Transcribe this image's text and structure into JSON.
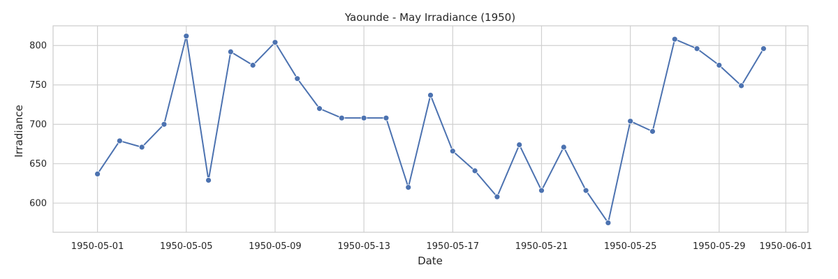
{
  "chart_data": {
    "type": "line",
    "title": "Yaounde - May Irradiance (1950)",
    "xlabel": "Date",
    "ylabel": "Irradiance",
    "x_ticks": [
      "1950-05-01",
      "1950-05-05",
      "1950-05-09",
      "1950-05-13",
      "1950-05-17",
      "1950-05-21",
      "1950-05-25",
      "1950-05-29",
      "1950-06-01"
    ],
    "y_ticks": [
      600,
      650,
      700,
      750,
      800
    ],
    "xlim": [
      "1950-04-29",
      "1950-06-02"
    ],
    "ylim": [
      563,
      825
    ],
    "grid": true,
    "markers": true,
    "line_color": "#4c72b0",
    "series": [
      {
        "x": [
          "1950-05-01",
          "1950-05-02",
          "1950-05-03",
          "1950-05-04",
          "1950-05-05",
          "1950-05-06",
          "1950-05-07",
          "1950-05-08",
          "1950-05-09",
          "1950-05-10",
          "1950-05-11",
          "1950-05-12",
          "1950-05-13",
          "1950-05-14",
          "1950-05-15",
          "1950-05-16",
          "1950-05-17",
          "1950-05-18",
          "1950-05-19",
          "1950-05-20",
          "1950-05-21",
          "1950-05-22",
          "1950-05-23",
          "1950-05-24",
          "1950-05-25",
          "1950-05-26",
          "1950-05-27",
          "1950-05-28",
          "1950-05-29",
          "1950-05-30",
          "1950-05-31"
        ],
        "values": [
          637,
          679,
          671,
          700,
          812,
          629,
          792,
          775,
          804,
          758,
          720,
          708,
          708,
          708,
          620,
          737,
          666,
          641,
          608,
          674,
          616,
          671,
          616,
          575,
          704,
          691,
          808,
          796,
          775,
          749,
          796
        ]
      }
    ]
  }
}
